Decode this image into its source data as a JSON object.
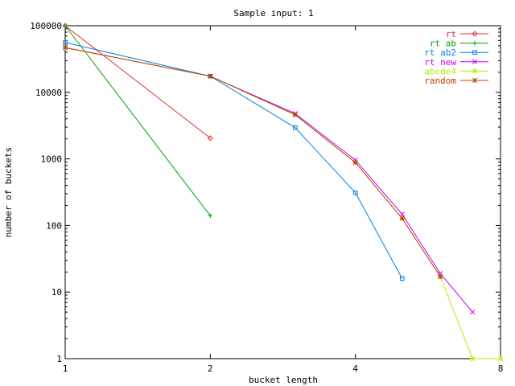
{
  "chart_data": {
    "type": "line",
    "title": "Sample input: 1",
    "xlabel": "bucket length",
    "ylabel": "number of buckets",
    "x_scale": "log2",
    "y_scale": "log10",
    "xlim": [
      1,
      8
    ],
    "ylim": [
      1,
      100000
    ],
    "x_ticks": [
      {
        "value": 1,
        "label": "1"
      },
      {
        "value": 2,
        "label": "2"
      },
      {
        "value": 4,
        "label": "4"
      },
      {
        "value": 8,
        "label": "8"
      }
    ],
    "y_ticks": [
      {
        "value": 1,
        "label": "1"
      },
      {
        "value": 10,
        "label": "10"
      },
      {
        "value": 100,
        "label": "100"
      },
      {
        "value": 1000,
        "label": "1000"
      },
      {
        "value": 10000,
        "label": "10000"
      },
      {
        "value": 100000,
        "label": "100000"
      }
    ],
    "grid": false,
    "legend_position": "top-right",
    "series": [
      {
        "name": "rt",
        "color": "#e03030",
        "marker": "diamond",
        "points": [
          [
            1,
            100000
          ],
          [
            2,
            2050
          ]
        ]
      },
      {
        "name": "rt ab",
        "color": "#00a000",
        "marker": "plus",
        "points": [
          [
            1,
            100000
          ],
          [
            2,
            140
          ]
        ]
      },
      {
        "name": "rt ab2",
        "color": "#0080e0",
        "marker": "square",
        "points": [
          [
            1,
            56000
          ],
          [
            2,
            17500
          ],
          [
            3,
            2950
          ],
          [
            4,
            310
          ],
          [
            5,
            16
          ]
        ]
      },
      {
        "name": "rt new",
        "color": "#c000ff",
        "marker": "x",
        "points": [
          [
            1,
            47000
          ],
          [
            2,
            17500
          ],
          [
            3,
            4800
          ],
          [
            4,
            960
          ],
          [
            5,
            148
          ],
          [
            6,
            19
          ],
          [
            7,
            5
          ]
        ]
      },
      {
        "name": "abcde4",
        "color": "#b0f000",
        "marker": "star",
        "points": [
          [
            1,
            47000
          ],
          [
            2,
            17500
          ],
          [
            3,
            4600
          ],
          [
            4,
            880
          ],
          [
            5,
            128
          ],
          [
            6,
            17
          ],
          [
            7,
            1
          ],
          [
            8,
            1
          ]
        ]
      },
      {
        "name": "random",
        "color": "#c04000",
        "marker": "star",
        "points": [
          [
            1,
            47000
          ],
          [
            2,
            17500
          ],
          [
            3,
            4600
          ],
          [
            4,
            880
          ],
          [
            5,
            128
          ],
          [
            6,
            17
          ]
        ]
      }
    ]
  }
}
